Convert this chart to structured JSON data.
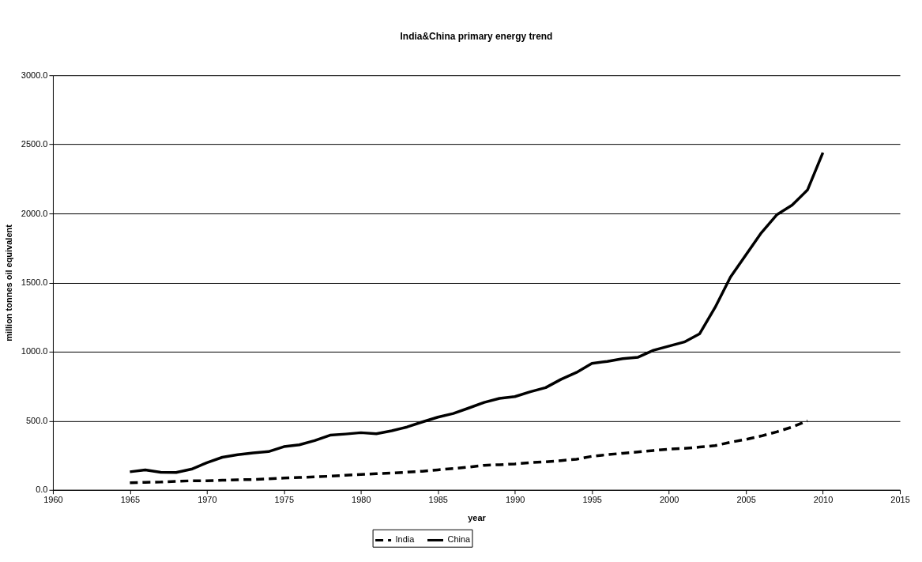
{
  "chart_data": {
    "type": "line",
    "title": "India&China primary energy trend",
    "xlabel": "year",
    "ylabel": "million tonnes oil equivalent",
    "xlim": [
      1960,
      2015
    ],
    "xticks": [
      1960,
      1965,
      1970,
      1975,
      1980,
      1985,
      1990,
      1995,
      2000,
      2005,
      2010,
      2015
    ],
    "ylim": [
      0,
      3000
    ],
    "yticks": [
      {
        "value": 0,
        "label": "0.0"
      },
      {
        "value": 500,
        "label": "500.0"
      },
      {
        "value": 1000,
        "label": "1000.0"
      },
      {
        "value": 1500,
        "label": "1500.0"
      },
      {
        "value": 2000,
        "label": "2000.0"
      },
      {
        "value": 2500,
        "label": "2500.0"
      },
      {
        "value": 3000,
        "label": "3000.0"
      }
    ],
    "grid": "y",
    "legend": "bottom",
    "marker": "none",
    "series": [
      {
        "name": "India",
        "color": "#000000",
        "line_style": "dashed",
        "x": [
          1965,
          1966,
          1967,
          1968,
          1969,
          1970,
          1971,
          1972,
          1973,
          1974,
          1975,
          1976,
          1977,
          1978,
          1979,
          1980,
          1981,
          1982,
          1983,
          1984,
          1985,
          1986,
          1987,
          1988,
          1989,
          1990,
          1991,
          1992,
          1993,
          1994,
          1995,
          1996,
          1997,
          1998,
          1999,
          2000,
          2001,
          2002,
          2003,
          2004,
          2005,
          2006,
          2007,
          2008,
          2009
        ],
        "values": [
          52,
          55,
          57,
          62,
          66,
          66,
          70,
          73,
          75,
          80,
          86,
          90,
          94,
          99,
          106,
          112,
          117,
          122,
          128,
          135,
          145,
          155,
          165,
          178,
          182,
          188,
          197,
          203,
          212,
          222,
          243,
          255,
          265,
          275,
          285,
          295,
          300,
          310,
          320,
          345,
          365,
          390,
          420,
          455,
          500
        ]
      },
      {
        "name": "China",
        "color": "#000000",
        "line_style": "solid",
        "x": [
          1965,
          1966,
          1967,
          1968,
          1969,
          1970,
          1971,
          1972,
          1973,
          1974,
          1975,
          1976,
          1977,
          1978,
          1979,
          1980,
          1981,
          1982,
          1983,
          1984,
          1985,
          1986,
          1987,
          1988,
          1989,
          1990,
          1991,
          1992,
          1993,
          1994,
          1995,
          1996,
          1997,
          1998,
          1999,
          2000,
          2001,
          2002,
          2003,
          2004,
          2005,
          2006,
          2007,
          2008,
          2009,
          2010
        ],
        "values": [
          131,
          145,
          127,
          126,
          150,
          197,
          236,
          255,
          268,
          277,
          313,
          326,
          357,
          396,
          404,
          414,
          406,
          428,
          455,
          492,
          526,
          553,
          592,
          633,
          662,
          675,
          710,
          740,
          800,
          850,
          915,
          930,
          950,
          960,
          1010,
          1040,
          1070,
          1130,
          1320,
          1540,
          1700,
          1860,
          1990,
          2060,
          2170,
          2440
        ]
      }
    ]
  }
}
